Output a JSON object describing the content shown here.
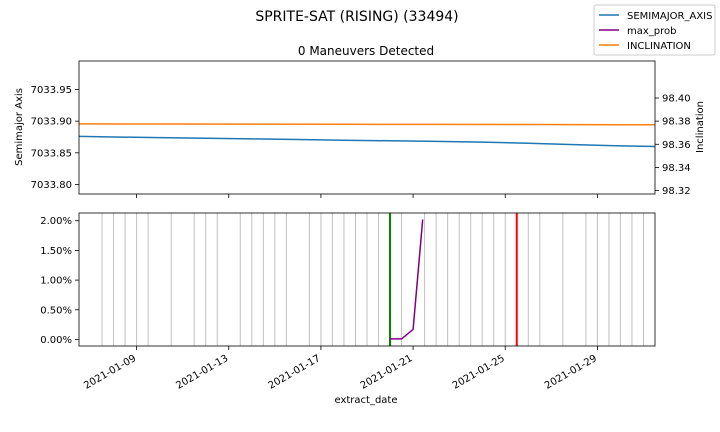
{
  "figure": {
    "title": "SPRITE-SAT (RISING) (33494)",
    "xlabel": "extract_date"
  },
  "legend": {
    "placement": "top-right",
    "entries": [
      {
        "label": "SEMIMAJOR_AXIS",
        "color": "#1f77b4"
      },
      {
        "label": "max_prob",
        "color": "#800080"
      },
      {
        "label": "INCLINATION",
        "color": "#ff7f0e"
      }
    ]
  },
  "chart_data": [
    {
      "type": "line",
      "title": "0 Maneuvers Detected",
      "ylabel": "Semimajor Axis",
      "ylabel_right": "Inclination",
      "xlim": [
        "2021-01-06T12:00",
        "2021-01-31T12:00"
      ],
      "ylim": [
        7033.785,
        7033.995
      ],
      "ylim_right": [
        98.317,
        98.432
      ],
      "yticks": [
        "7033.80",
        "7033.85",
        "7033.90",
        "7033.95"
      ],
      "yticks_right": [
        "98.32",
        "98.34",
        "98.36",
        "98.38",
        "98.40"
      ],
      "grid": false,
      "series": [
        {
          "name": "SEMIMAJOR_AXIS",
          "axis": "left",
          "color": "#1f77b4",
          "x": [
            "2021-01-06T12:00",
            "2021-01-08T00:00",
            "2021-01-10T00:00",
            "2021-01-12T00:00",
            "2021-01-14T00:00",
            "2021-01-16T00:00",
            "2021-01-18T00:00",
            "2021-01-20T00:00",
            "2021-01-22T00:00",
            "2021-01-24T00:00",
            "2021-01-26T00:00",
            "2021-01-28T00:00",
            "2021-01-30T00:00",
            "2021-01-31T12:00"
          ],
          "y": [
            7033.876,
            7033.875,
            7033.874,
            7033.873,
            7033.872,
            7033.871,
            7033.87,
            7033.869,
            7033.868,
            7033.867,
            7033.865,
            7033.863,
            7033.861,
            7033.86
          ]
        },
        {
          "name": "INCLINATION",
          "axis": "right",
          "color": "#ff7f0e",
          "x": [
            "2021-01-06T12:00",
            "2021-01-10T00:00",
            "2021-01-14T00:00",
            "2021-01-18T00:00",
            "2021-01-22T00:00",
            "2021-01-26T00:00",
            "2021-01-30T00:00",
            "2021-01-31T12:00"
          ],
          "y": [
            98.3776,
            98.3775,
            98.3774,
            98.3773,
            98.3772,
            98.3771,
            98.3769,
            98.3769
          ]
        }
      ]
    },
    {
      "type": "line",
      "xlim": [
        "2021-01-06T12:00",
        "2021-01-31T12:00"
      ],
      "ylim": [
        -0.0011,
        0.0213
      ],
      "yticks": [
        "0.00%",
        "0.50%",
        "1.00%",
        "1.50%",
        "2.00%"
      ],
      "ytick_values": [
        0,
        0.005,
        0.01,
        0.015,
        0.02
      ],
      "xticks": [
        "2021-01-09",
        "2021-01-13",
        "2021-01-17",
        "2021-01-21",
        "2021-01-25",
        "2021-01-29"
      ],
      "grid": false,
      "series": [
        {
          "name": "max_prob",
          "color": "#800080",
          "x": [
            "2021-01-20T00:00",
            "2021-01-20T12:00",
            "2021-01-21T00:00",
            "2021-01-21T10:00"
          ],
          "y": [
            0.0001,
            0.0001,
            0.0017,
            0.0202
          ]
        }
      ],
      "vlines": {
        "gray_color": "#c0c0c0",
        "gray_dates": [
          "2021-01-07T12:00",
          "2021-01-08T00:00",
          "2021-01-08T12:00",
          "2021-01-09T00:00",
          "2021-01-09T12:00",
          "2021-01-10T12:00",
          "2021-01-11T12:00",
          "2021-01-12T00:00",
          "2021-01-12T12:00",
          "2021-01-13T12:00",
          "2021-01-14T00:00",
          "2021-01-14T12:00",
          "2021-01-15T00:00",
          "2021-01-15T12:00",
          "2021-01-16T12:00",
          "2021-01-17T00:00",
          "2021-01-17T12:00",
          "2021-01-18T00:00",
          "2021-01-18T12:00",
          "2021-01-19T00:00",
          "2021-01-19T12:00",
          "2021-01-20T12:00",
          "2021-01-21T12:00",
          "2021-01-22T00:00",
          "2021-01-22T12:00",
          "2021-01-23T00:00",
          "2021-01-23T12:00",
          "2021-01-24T00:00",
          "2021-01-24T12:00",
          "2021-01-25T00:00",
          "2021-01-26T00:00",
          "2021-01-26T12:00",
          "2021-01-27T12:00",
          "2021-01-28T12:00",
          "2021-01-29T00:00",
          "2021-01-29T12:00",
          "2021-01-30T00:00",
          "2021-01-30T12:00",
          "2021-01-31T00:00"
        ],
        "green_color": "#008000",
        "green_dates": [
          "2021-01-20T00:00"
        ],
        "red_color": "#ff0000",
        "red_dates": [
          "2021-01-25T12:00"
        ]
      }
    }
  ]
}
